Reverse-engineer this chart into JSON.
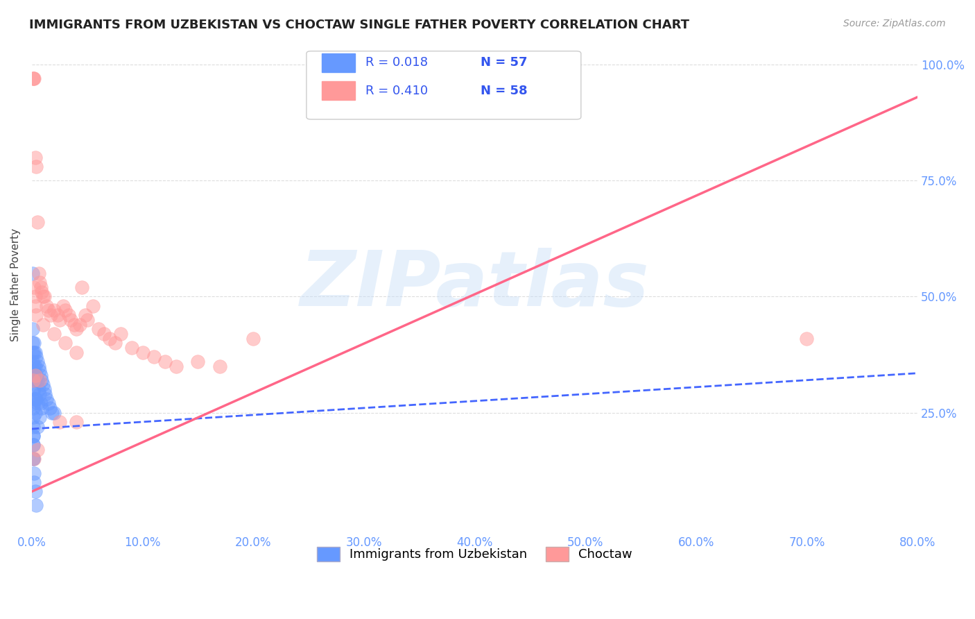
{
  "title": "IMMIGRANTS FROM UZBEKISTAN VS CHOCTAW SINGLE FATHER POVERTY CORRELATION CHART",
  "source": "Source: ZipAtlas.com",
  "ylabel": "Single Father Poverty",
  "legend_label1": "Immigrants from Uzbekistan",
  "legend_label2": "Choctaw",
  "r1": "0.018",
  "n1": "57",
  "r2": "0.410",
  "n2": "58",
  "xlim": [
    0.0,
    0.8
  ],
  "ylim": [
    0.0,
    1.05
  ],
  "yticks": [
    0.25,
    0.5,
    0.75,
    1.0
  ],
  "ytick_labels": [
    "25.0%",
    "50.0%",
    "75.0%",
    "100.0%"
  ],
  "xticks": [
    0.0,
    0.1,
    0.2,
    0.3,
    0.4,
    0.5,
    0.6,
    0.7,
    0.8
  ],
  "color_blue": "#6699ff",
  "color_pink": "#ff9999",
  "color_blue_line": "#4466ff",
  "color_pink_line": "#ff6688",
  "background": "#ffffff",
  "watermark": "ZIPatlas",
  "uzbekistan_x": [
    0.0005,
    0.0006,
    0.0007,
    0.0008,
    0.0009,
    0.001,
    0.001,
    0.001,
    0.001,
    0.001,
    0.001,
    0.001,
    0.001,
    0.0012,
    0.0015,
    0.002,
    0.002,
    0.002,
    0.002,
    0.002,
    0.002,
    0.003,
    0.003,
    0.003,
    0.003,
    0.003,
    0.004,
    0.004,
    0.004,
    0.005,
    0.005,
    0.005,
    0.005,
    0.006,
    0.006,
    0.007,
    0.007,
    0.007,
    0.008,
    0.008,
    0.009,
    0.009,
    0.01,
    0.011,
    0.012,
    0.013,
    0.015,
    0.016,
    0.018,
    0.02,
    0.001,
    0.001,
    0.001,
    0.002,
    0.002,
    0.003,
    0.004
  ],
  "uzbekistan_y": [
    0.55,
    0.43,
    0.4,
    0.38,
    0.36,
    0.34,
    0.32,
    0.3,
    0.28,
    0.26,
    0.24,
    0.22,
    0.2,
    0.18,
    0.15,
    0.4,
    0.38,
    0.35,
    0.33,
    0.3,
    0.27,
    0.38,
    0.35,
    0.32,
    0.28,
    0.25,
    0.37,
    0.33,
    0.28,
    0.36,
    0.32,
    0.27,
    0.22,
    0.35,
    0.3,
    0.34,
    0.29,
    0.24,
    0.33,
    0.27,
    0.32,
    0.26,
    0.31,
    0.3,
    0.29,
    0.28,
    0.27,
    0.26,
    0.25,
    0.25,
    0.2,
    0.18,
    0.15,
    0.12,
    0.1,
    0.08,
    0.05
  ],
  "choctaw_x": [
    0.001,
    0.001,
    0.002,
    0.002,
    0.003,
    0.003,
    0.004,
    0.005,
    0.006,
    0.007,
    0.008,
    0.009,
    0.01,
    0.011,
    0.013,
    0.015,
    0.017,
    0.02,
    0.023,
    0.025,
    0.028,
    0.03,
    0.033,
    0.035,
    0.038,
    0.04,
    0.043,
    0.045,
    0.048,
    0.05,
    0.055,
    0.06,
    0.065,
    0.07,
    0.075,
    0.08,
    0.09,
    0.1,
    0.11,
    0.12,
    0.13,
    0.15,
    0.17,
    0.2,
    0.003,
    0.004,
    0.01,
    0.02,
    0.03,
    0.04,
    0.003,
    0.007,
    0.025,
    0.04,
    0.7,
    0.001,
    0.002,
    0.005
  ],
  "choctaw_y": [
    0.97,
    0.97,
    0.97,
    0.52,
    0.5,
    0.8,
    0.78,
    0.66,
    0.55,
    0.53,
    0.52,
    0.51,
    0.5,
    0.5,
    0.48,
    0.47,
    0.46,
    0.47,
    0.46,
    0.45,
    0.48,
    0.47,
    0.46,
    0.45,
    0.44,
    0.43,
    0.44,
    0.52,
    0.46,
    0.45,
    0.48,
    0.43,
    0.42,
    0.41,
    0.4,
    0.42,
    0.39,
    0.38,
    0.37,
    0.36,
    0.35,
    0.36,
    0.35,
    0.41,
    0.48,
    0.46,
    0.44,
    0.42,
    0.4,
    0.38,
    0.33,
    0.32,
    0.23,
    0.23,
    0.41,
    0.32,
    0.15,
    0.17
  ],
  "blue_trend_x": [
    0.0,
    0.8
  ],
  "blue_trend_y": [
    0.215,
    0.335
  ],
  "pink_trend_x": [
    0.0,
    0.8
  ],
  "pink_trend_y": [
    0.08,
    0.93
  ]
}
